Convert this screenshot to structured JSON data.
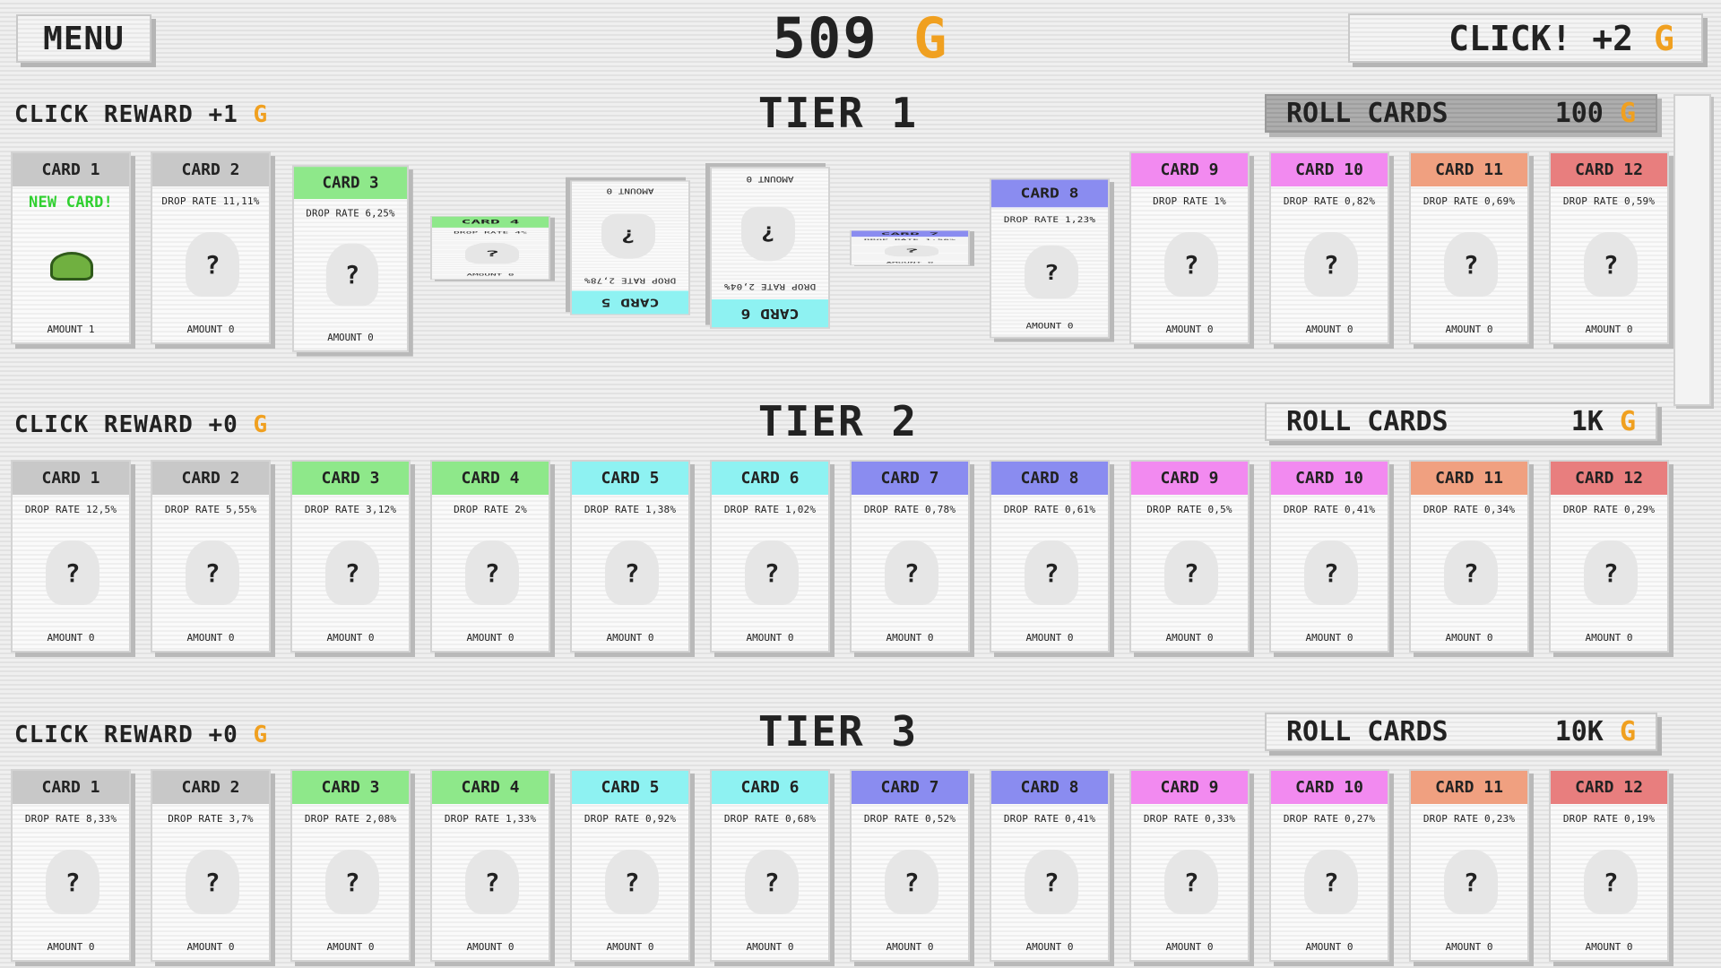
{
  "header": {
    "menu_label": "MENU",
    "gold_amount": "509",
    "currency": "G",
    "click_label": "CLICK! +2"
  },
  "colors": {
    "gold": "#f0a020",
    "common": "#c8c8c8",
    "uncommon": "#8ee88a",
    "rare": "#8ef2f2",
    "epic": "#8a8cf0",
    "mythic": "#f28af0",
    "legendary": "#f0a080",
    "ultimate": "#e87e7e"
  },
  "tiers": [
    {
      "title": "TIER 1",
      "click_reward": "CLICK REWARD +1",
      "currency": "G",
      "roll_label": "ROLL CARDS",
      "roll_cost": "100",
      "roll_active": true,
      "cards": [
        {
          "name": "CARD 1",
          "rate": "NEW CARD!",
          "amount": "AMOUNT 1",
          "color": "#c8c8c8",
          "icon": "slime-icon"
        },
        {
          "name": "CARD 2",
          "rate": "DROP RATE 11,11%",
          "amount": "AMOUNT 0",
          "color": "#c8c8c8"
        },
        {
          "name": "CARD 3",
          "rate": "DROP RATE 6,25%",
          "amount": "AMOUNT 0",
          "color": "#8ee88a"
        },
        {
          "name": "CARD 4",
          "rate": "DROP RATE 4%",
          "amount": "AMOUNT 0",
          "color": "#8ee88a"
        },
        {
          "name": "CARD 5",
          "rate": "DROP RATE 2,78%",
          "amount": "AMOUNT 0",
          "color": "#8ef2f2"
        },
        {
          "name": "CARD 6",
          "rate": "DROP RATE 2,04%",
          "amount": "AMOUNT 0",
          "color": "#8ef2f2"
        },
        {
          "name": "CARD 7",
          "rate": "DROP RATE 1,56%",
          "amount": "AMOUNT 0",
          "color": "#8a8cf0"
        },
        {
          "name": "CARD 8",
          "rate": "DROP RATE 1,23%",
          "amount": "AMOUNT 0",
          "color": "#8a8cf0"
        },
        {
          "name": "CARD 9",
          "rate": "DROP RATE 1%",
          "amount": "AMOUNT 0",
          "color": "#f28af0"
        },
        {
          "name": "CARD 10",
          "rate": "DROP RATE 0,82%",
          "amount": "AMOUNT 0",
          "color": "#f28af0"
        },
        {
          "name": "CARD 11",
          "rate": "DROP RATE 0,69%",
          "amount": "AMOUNT 0",
          "color": "#f0a080"
        },
        {
          "name": "CARD 12",
          "rate": "DROP RATE 0,59%",
          "amount": "AMOUNT 0",
          "color": "#e87e7e"
        }
      ]
    },
    {
      "title": "TIER 2",
      "click_reward": "CLICK REWARD +0",
      "currency": "G",
      "roll_label": "ROLL CARDS",
      "roll_cost": "1K",
      "roll_active": false,
      "cards": [
        {
          "name": "CARD 1",
          "rate": "DROP RATE 12,5%",
          "amount": "AMOUNT 0",
          "color": "#c8c8c8"
        },
        {
          "name": "CARD 2",
          "rate": "DROP RATE 5,55%",
          "amount": "AMOUNT 0",
          "color": "#c8c8c8"
        },
        {
          "name": "CARD 3",
          "rate": "DROP RATE 3,12%",
          "amount": "AMOUNT 0",
          "color": "#8ee88a"
        },
        {
          "name": "CARD 4",
          "rate": "DROP RATE 2%",
          "amount": "AMOUNT 0",
          "color": "#8ee88a"
        },
        {
          "name": "CARD 5",
          "rate": "DROP RATE 1,38%",
          "amount": "AMOUNT 0",
          "color": "#8ef2f2"
        },
        {
          "name": "CARD 6",
          "rate": "DROP RATE 1,02%",
          "amount": "AMOUNT 0",
          "color": "#8ef2f2"
        },
        {
          "name": "CARD 7",
          "rate": "DROP RATE 0,78%",
          "amount": "AMOUNT 0",
          "color": "#8a8cf0"
        },
        {
          "name": "CARD 8",
          "rate": "DROP RATE 0,61%",
          "amount": "AMOUNT 0",
          "color": "#8a8cf0"
        },
        {
          "name": "CARD 9",
          "rate": "DROP RATE 0,5%",
          "amount": "AMOUNT 0",
          "color": "#f28af0"
        },
        {
          "name": "CARD 10",
          "rate": "DROP RATE 0,41%",
          "amount": "AMOUNT 0",
          "color": "#f28af0"
        },
        {
          "name": "CARD 11",
          "rate": "DROP RATE 0,34%",
          "amount": "AMOUNT 0",
          "color": "#f0a080"
        },
        {
          "name": "CARD 12",
          "rate": "DROP RATE 0,29%",
          "amount": "AMOUNT 0",
          "color": "#e87e7e"
        }
      ]
    },
    {
      "title": "TIER 3",
      "click_reward": "CLICK REWARD +0",
      "currency": "G",
      "roll_label": "ROLL CARDS",
      "roll_cost": "10K",
      "roll_active": false,
      "cards": [
        {
          "name": "CARD 1",
          "rate": "DROP RATE 8,33%",
          "amount": "AMOUNT 0",
          "color": "#c8c8c8"
        },
        {
          "name": "CARD 2",
          "rate": "DROP RATE 3,7%",
          "amount": "AMOUNT 0",
          "color": "#c8c8c8"
        },
        {
          "name": "CARD 3",
          "rate": "DROP RATE 2,08%",
          "amount": "AMOUNT 0",
          "color": "#8ee88a"
        },
        {
          "name": "CARD 4",
          "rate": "DROP RATE 1,33%",
          "amount": "AMOUNT 0",
          "color": "#8ee88a"
        },
        {
          "name": "CARD 5",
          "rate": "DROP RATE 0,92%",
          "amount": "AMOUNT 0",
          "color": "#8ef2f2"
        },
        {
          "name": "CARD 6",
          "rate": "DROP RATE 0,68%",
          "amount": "AMOUNT 0",
          "color": "#8ef2f2"
        },
        {
          "name": "CARD 7",
          "rate": "DROP RATE 0,52%",
          "amount": "AMOUNT 0",
          "color": "#8a8cf0"
        },
        {
          "name": "CARD 8",
          "rate": "DROP RATE 0,41%",
          "amount": "AMOUNT 0",
          "color": "#8a8cf0"
        },
        {
          "name": "CARD 9",
          "rate": "DROP RATE 0,33%",
          "amount": "AMOUNT 0",
          "color": "#f28af0"
        },
        {
          "name": "CARD 10",
          "rate": "DROP RATE 0,27%",
          "amount": "AMOUNT 0",
          "color": "#f28af0"
        },
        {
          "name": "CARD 11",
          "rate": "DROP RATE 0,23%",
          "amount": "AMOUNT 0",
          "color": "#f0a080"
        },
        {
          "name": "CARD 12",
          "rate": "DROP RATE 0,19%",
          "amount": "AMOUNT 0",
          "color": "#e87e7e"
        }
      ]
    }
  ],
  "card_hidden_symbol": "?"
}
